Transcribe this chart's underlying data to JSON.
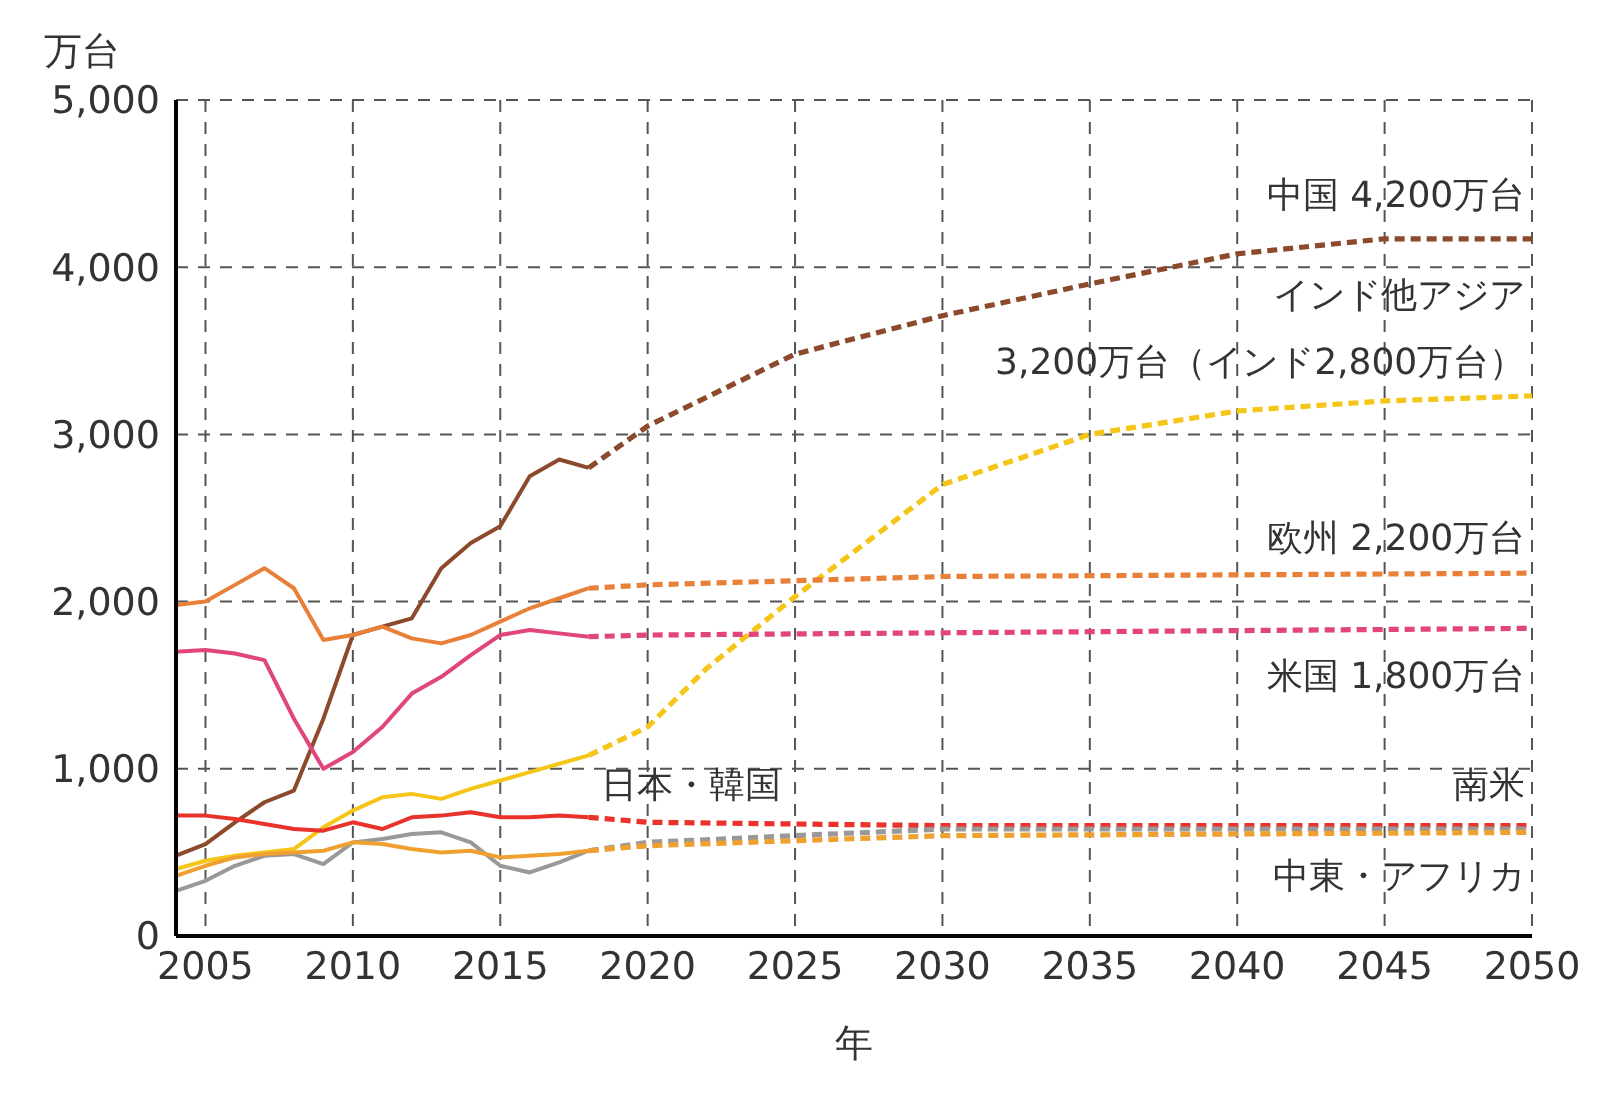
{
  "chart_data": {
    "type": "line",
    "xlabel": "年",
    "ylabel": "万台",
    "xlim": [
      2004,
      2050
    ],
    "xticks": [
      2005,
      2010,
      2015,
      2020,
      2025,
      2030,
      2035,
      2040,
      2045,
      2050
    ],
    "ylim": [
      0,
      5000
    ],
    "yticks": [
      0,
      {
        "value": 1000,
        "label": "1,000"
      },
      {
        "value": 2000,
        "label": "2,000"
      },
      {
        "value": 3000,
        "label": "3,000"
      },
      {
        "value": 4000,
        "label": "4,000"
      },
      {
        "value": 5000,
        "label": "5,000"
      }
    ],
    "grid": true,
    "marker": "none",
    "series": [
      {
        "color": "#8b4a2b",
        "line_style": "solid",
        "x": [
          2004,
          2005,
          2006,
          2007,
          2008,
          2009,
          2010,
          2011,
          2012,
          2013,
          2014,
          2015,
          2016,
          2017,
          2018
        ],
        "values": [
          480,
          550,
          680,
          800,
          870,
          1300,
          1800,
          1850,
          1900,
          2200,
          2350,
          2450,
          2750,
          2850,
          2800
        ]
      },
      {
        "color": "#8b4a2b",
        "line_style": "dashed",
        "x": [
          2018,
          2020,
          2025,
          2030,
          2035,
          2040,
          2045,
          2050
        ],
        "values": [
          2800,
          3050,
          3480,
          3710,
          3900,
          4080,
          4170,
          4170
        ]
      },
      {
        "color": "#f5c518",
        "line_style": "solid",
        "x": [
          2004,
          2005,
          2006,
          2007,
          2008,
          2009,
          2010,
          2011,
          2012,
          2013,
          2014,
          2015,
          2016,
          2017,
          2018
        ],
        "values": [
          400,
          450,
          480,
          500,
          520,
          650,
          750,
          830,
          850,
          820,
          880,
          930,
          980,
          1030,
          1080
        ]
      },
      {
        "color": "#f5c518",
        "line_style": "dashed",
        "x": [
          2018,
          2020,
          2022,
          2025,
          2030,
          2035,
          2040,
          2045,
          2050
        ],
        "values": [
          1080,
          1250,
          1600,
          2030,
          2700,
          3000,
          3140,
          3200,
          3230
        ]
      },
      {
        "color": "#e8803a",
        "line_style": "solid",
        "x": [
          2004,
          2005,
          2006,
          2007,
          2008,
          2009,
          2010,
          2011,
          2012,
          2013,
          2014,
          2015,
          2016,
          2017,
          2018
        ],
        "values": [
          1980,
          2000,
          2100,
          2200,
          2080,
          1770,
          1800,
          1850,
          1780,
          1750,
          1800,
          1880,
          1960,
          2020,
          2080
        ]
      },
      {
        "color": "#e8803a",
        "line_style": "dashed",
        "x": [
          2018,
          2020,
          2030,
          2050
        ],
        "values": [
          2080,
          2100,
          2150,
          2170
        ]
      },
      {
        "color": "#e0457b",
        "line_style": "solid",
        "x": [
          2004,
          2005,
          2006,
          2007,
          2008,
          2009,
          2010,
          2011,
          2012,
          2013,
          2014,
          2015,
          2016,
          2017,
          2018
        ],
        "values": [
          1700,
          1710,
          1690,
          1650,
          1300,
          1000,
          1100,
          1250,
          1450,
          1550,
          1680,
          1800,
          1830,
          1810,
          1790
        ]
      },
      {
        "color": "#e0457b",
        "line_style": "dashed",
        "x": [
          2018,
          2020,
          2050
        ],
        "values": [
          1790,
          1800,
          1840
        ]
      },
      {
        "color": "#e8322a",
        "line_style": "solid",
        "x": [
          2004,
          2005,
          2006,
          2007,
          2008,
          2009,
          2010,
          2011,
          2012,
          2013,
          2014,
          2015,
          2016,
          2017,
          2018
        ],
        "values": [
          720,
          720,
          700,
          670,
          640,
          630,
          680,
          640,
          710,
          720,
          740,
          710,
          710,
          720,
          710
        ]
      },
      {
        "color": "#e8322a",
        "line_style": "dashed",
        "x": [
          2018,
          2020,
          2030,
          2050
        ],
        "values": [
          710,
          680,
          660,
          660
        ]
      },
      {
        "color": "#999999",
        "line_style": "solid",
        "x": [
          2004,
          2005,
          2006,
          2007,
          2008,
          2009,
          2010,
          2011,
          2012,
          2013,
          2014,
          2015,
          2016,
          2017,
          2018
        ],
        "values": [
          270,
          330,
          420,
          480,
          490,
          430,
          560,
          580,
          610,
          620,
          560,
          420,
          380,
          440,
          510
        ]
      },
      {
        "color": "#999999",
        "line_style": "dashed",
        "x": [
          2018,
          2020,
          2030,
          2050
        ],
        "values": [
          510,
          560,
          640,
          640
        ]
      },
      {
        "color": "#f0a030",
        "line_style": "solid",
        "x": [
          2004,
          2005,
          2006,
          2007,
          2008,
          2009,
          2010,
          2011,
          2012,
          2013,
          2014,
          2015,
          2016,
          2017,
          2018
        ],
        "values": [
          360,
          420,
          470,
          490,
          500,
          510,
          560,
          550,
          520,
          500,
          510,
          470,
          480,
          490,
          510
        ]
      },
      {
        "color": "#f0a030",
        "line_style": "dashed",
        "x": [
          2018,
          2020,
          2030,
          2050
        ],
        "values": [
          510,
          540,
          600,
          620
        ]
      }
    ],
    "annotations": [
      "中国 4,200万台",
      "インド他アジア",
      "3,200万台（インド2,800万台）",
      "欧州 2,200万台",
      "米国 1,800万台",
      "日本・韓国",
      "南米",
      "中東・アフリカ"
    ]
  }
}
